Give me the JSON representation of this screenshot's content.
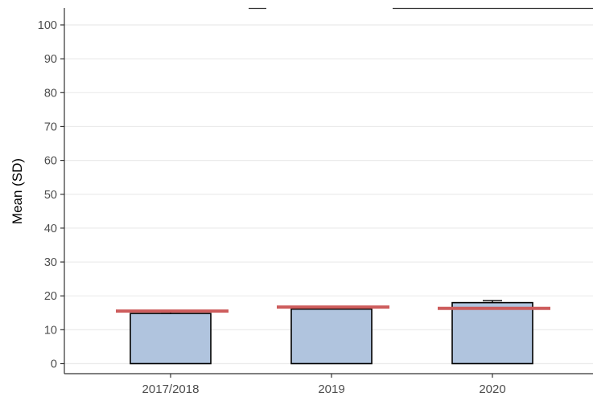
{
  "chart_data": {
    "type": "bar",
    "title": "",
    "xlabel": "",
    "ylabel": "Mean (SD)",
    "categories": [
      "2017/2018",
      "2019",
      "2020"
    ],
    "values": [
      14.8,
      16.1,
      18.0
    ],
    "error_upper": [
      15.2,
      16.9,
      18.6
    ],
    "reference_values": [
      15.5,
      16.7,
      16.3
    ],
    "ylim": [
      -2,
      105
    ],
    "y_ticks": [
      0,
      10,
      20,
      30,
      40,
      50,
      60,
      70,
      80,
      90,
      100
    ],
    "grid": true,
    "legend": "none",
    "colors": {
      "bar_fill": "#b0c4de",
      "bar_stroke": "#000000",
      "reference_line": "#cd5c5c",
      "grid": "#ebebeb",
      "axis": "#333333",
      "tick_label": "#4d4d4d",
      "axis_title": "#000000"
    }
  }
}
